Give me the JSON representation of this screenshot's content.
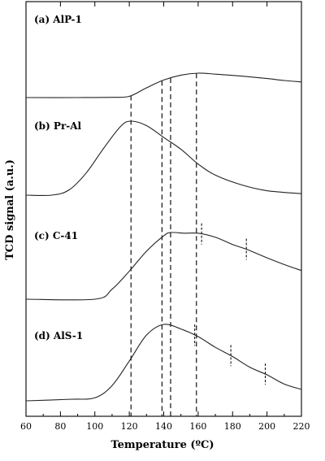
{
  "chart_data": {
    "type": "line",
    "title": "",
    "xlabel": "Temperature (ºC)",
    "ylabel": "TCD signal (a.u.)",
    "xlim": [
      60,
      220
    ],
    "xticks": [
      60,
      80,
      100,
      120,
      140,
      160,
      180,
      200,
      220
    ],
    "grid": false,
    "legend": "none",
    "y_ticks_shown": false,
    "y_units": "arbitrary",
    "series": [
      {
        "name": "(a) AlP-1",
        "points": [
          [
            60,
            0.0
          ],
          [
            90,
            0.0
          ],
          [
            110,
            0.01
          ],
          [
            120,
            0.05
          ],
          [
            130,
            0.4
          ],
          [
            140,
            0.72
          ],
          [
            150,
            0.92
          ],
          [
            160,
            1.0
          ],
          [
            170,
            0.96
          ],
          [
            185,
            0.88
          ],
          [
            200,
            0.78
          ],
          [
            210,
            0.7
          ],
          [
            220,
            0.64
          ]
        ]
      },
      {
        "name": "(b) Pr-Al",
        "points": [
          [
            60,
            0.0
          ],
          [
            75,
            0.0
          ],
          [
            85,
            0.07
          ],
          [
            95,
            0.3
          ],
          [
            105,
            0.63
          ],
          [
            115,
            0.93
          ],
          [
            121,
            1.0
          ],
          [
            130,
            0.94
          ],
          [
            140,
            0.78
          ],
          [
            150,
            0.62
          ],
          [
            160,
            0.42
          ],
          [
            170,
            0.27
          ],
          [
            185,
            0.14
          ],
          [
            200,
            0.06
          ],
          [
            220,
            0.02
          ]
        ]
      },
      {
        "name": "(c) C-41",
        "points": [
          [
            60,
            0.0
          ],
          [
            100,
            0.0
          ],
          [
            110,
            0.15
          ],
          [
            120,
            0.42
          ],
          [
            130,
            0.72
          ],
          [
            140,
            0.95
          ],
          [
            144,
            1.0
          ],
          [
            152,
            0.99
          ],
          [
            160,
            0.99
          ],
          [
            170,
            0.93
          ],
          [
            180,
            0.82
          ],
          [
            188,
            0.75
          ],
          [
            200,
            0.62
          ],
          [
            210,
            0.52
          ],
          [
            220,
            0.43
          ]
        ]
      },
      {
        "name": "(d) AlS-1",
        "points": [
          [
            60,
            0.0
          ],
          [
            85,
            0.02
          ],
          [
            100,
            0.04
          ],
          [
            110,
            0.2
          ],
          [
            120,
            0.52
          ],
          [
            130,
            0.86
          ],
          [
            140,
            1.0
          ],
          [
            150,
            0.94
          ],
          [
            160,
            0.84
          ],
          [
            170,
            0.7
          ],
          [
            180,
            0.58
          ],
          [
            190,
            0.44
          ],
          [
            200,
            0.34
          ],
          [
            210,
            0.22
          ],
          [
            220,
            0.15
          ]
        ]
      }
    ],
    "reference_lines": [
      121,
      139,
      144,
      159
    ],
    "peak_marks": [
      {
        "series": "(c) C-41",
        "x": [
          162,
          188
        ]
      },
      {
        "series": "(d) AlS-1",
        "x": [
          158,
          179,
          199
        ]
      }
    ]
  }
}
